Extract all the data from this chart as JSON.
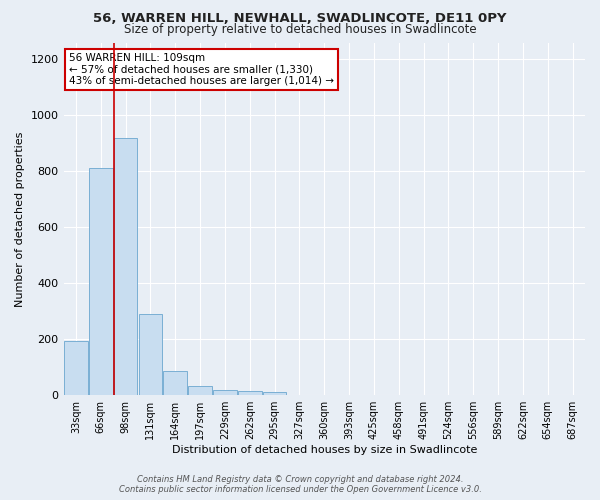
{
  "title": "56, WARREN HILL, NEWHALL, SWADLINCOTE, DE11 0PY",
  "subtitle": "Size of property relative to detached houses in Swadlincote",
  "xlabel": "Distribution of detached houses by size in Swadlincote",
  "ylabel": "Number of detached properties",
  "bar_color": "#c8ddf0",
  "bar_edge_color": "#7aafd4",
  "bg_color": "#e8eef5",
  "grid_color": "#ffffff",
  "categories": [
    "33sqm",
    "66sqm",
    "98sqm",
    "131sqm",
    "164sqm",
    "197sqm",
    "229sqm",
    "262sqm",
    "295sqm",
    "327sqm",
    "360sqm",
    "393sqm",
    "425sqm",
    "458sqm",
    "491sqm",
    "524sqm",
    "556sqm",
    "589sqm",
    "622sqm",
    "654sqm",
    "687sqm"
  ],
  "values": [
    193,
    810,
    920,
    290,
    85,
    33,
    18,
    14,
    10,
    0,
    0,
    0,
    0,
    0,
    0,
    0,
    0,
    0,
    0,
    0,
    0
  ],
  "ylim": [
    0,
    1260
  ],
  "yticks": [
    0,
    200,
    400,
    600,
    800,
    1000,
    1200
  ],
  "annotation_line1": "56 WARREN HILL: 109sqm",
  "annotation_line2": "← 57% of detached houses are smaller (1,330)",
  "annotation_line3": "43% of semi-detached houses are larger (1,014) →",
  "annotation_box_color": "#ffffff",
  "annotation_border_color": "#cc0000",
  "red_line_color": "#cc0000",
  "footer_line1": "Contains HM Land Registry data © Crown copyright and database right 2024.",
  "footer_line2": "Contains public sector information licensed under the Open Government Licence v3.0."
}
